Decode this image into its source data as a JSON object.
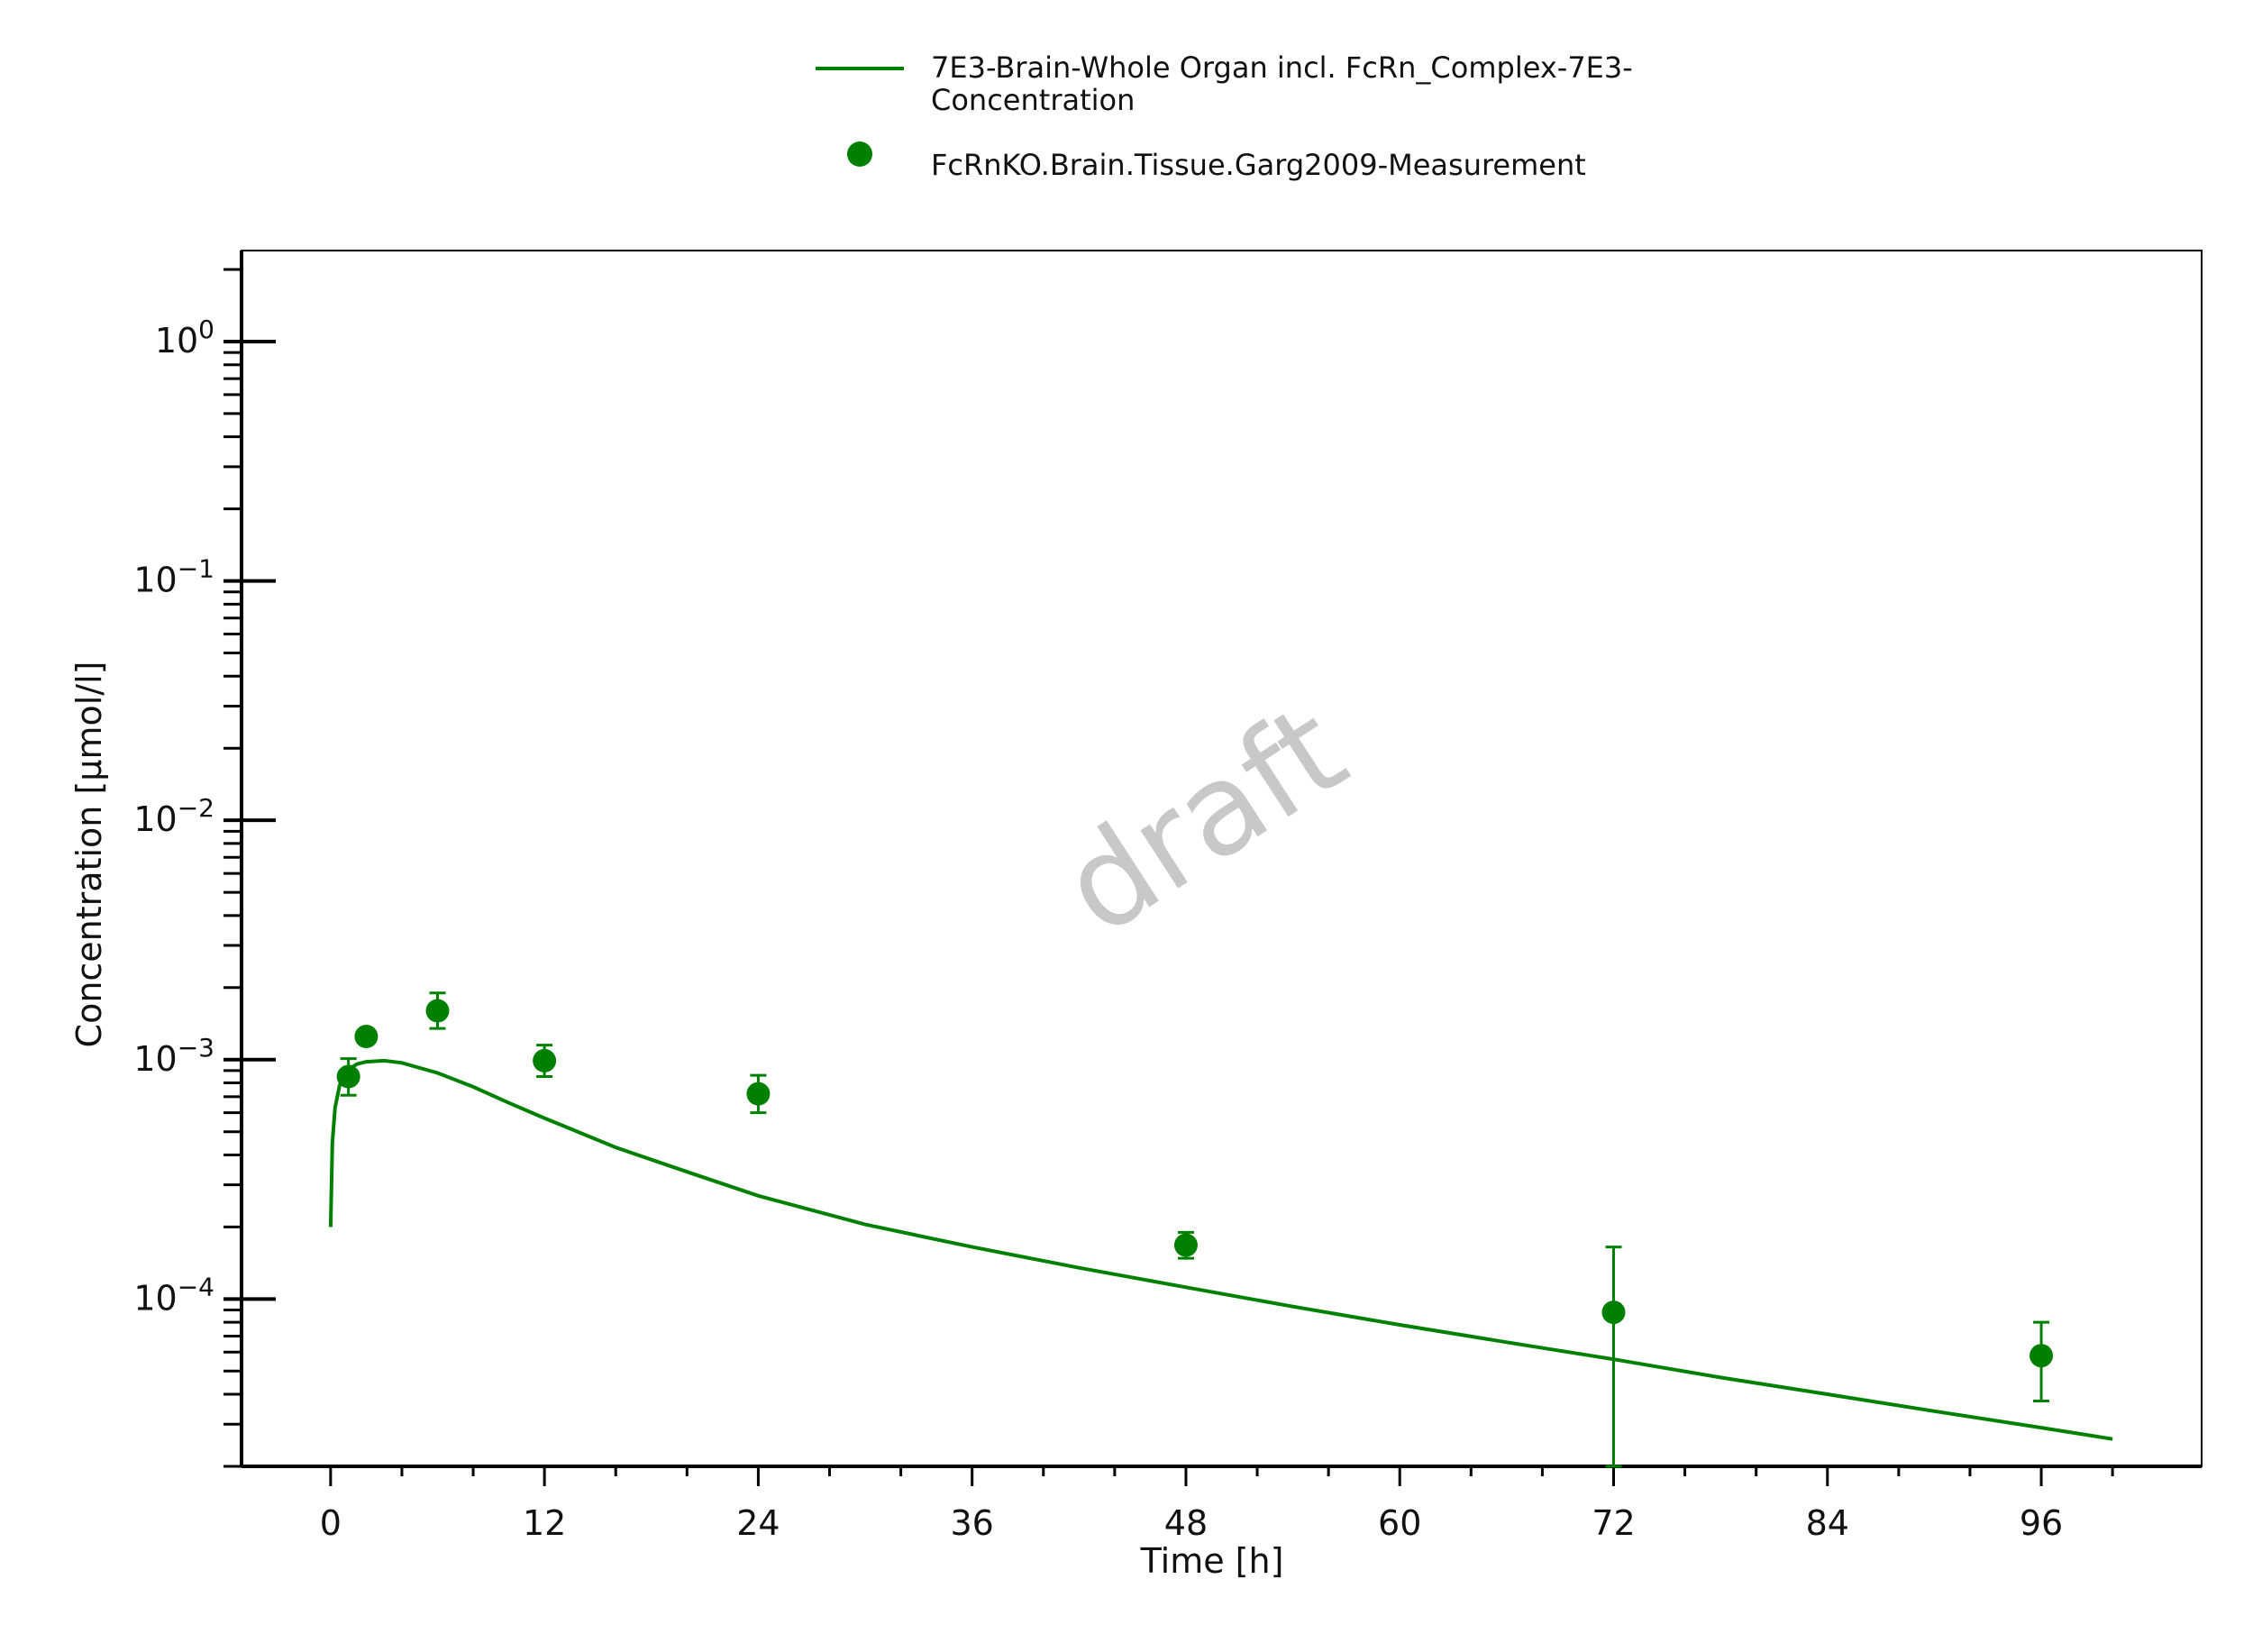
{
  "chart_data": {
    "type": "line",
    "xlabel": "Time [h]",
    "ylabel": "Concentration [µmol/l]",
    "xlim": [
      -5,
      105
    ],
    "ylim": [
      2e-05,
      2.4
    ],
    "yscale": "log",
    "xticks": [
      0,
      12,
      24,
      36,
      48,
      60,
      72,
      84,
      96
    ],
    "yticks": [
      {
        "value": 1,
        "base": "10",
        "exp": "0"
      },
      {
        "value": 0.1,
        "base": "10",
        "exp": "−1"
      },
      {
        "value": 0.01,
        "base": "10",
        "exp": "−2"
      },
      {
        "value": 0.001,
        "base": "10",
        "exp": "−3"
      },
      {
        "value": 0.0001,
        "base": "10",
        "exp": "−4"
      }
    ],
    "grid": false,
    "legend_position": "top",
    "watermark": "draft",
    "series": [
      {
        "name": "7E3-Brain-Whole Organ incl. FcRn_Complex-7E3-Concentration",
        "legend_lines": [
          "7E3-Brain-Whole Organ incl. FcRn_Complex-7E3-",
          "Concentration"
        ],
        "kind": "line",
        "color": "#008000",
        "x": [
          0,
          0.1,
          0.25,
          0.5,
          1,
          1.5,
          2,
          3,
          4,
          6,
          8,
          10,
          12,
          16,
          20,
          24,
          30,
          36,
          42,
          48,
          54,
          60,
          66,
          72,
          78,
          84,
          90,
          96,
          100
        ],
        "y": [
          0.0002,
          0.00045,
          0.00063,
          0.00078,
          0.00091,
          0.00096,
          0.00098,
          0.00099,
          0.00097,
          0.00088,
          0.00077,
          0.00066,
          0.00057,
          0.00043,
          0.00034,
          0.00027,
          0.000205,
          0.000165,
          0.000135,
          0.000112,
          9.3e-05,
          7.8e-05,
          6.6e-05,
          5.6e-05,
          4.7e-05,
          4e-05,
          3.4e-05,
          2.9e-05,
          2.6e-05
        ]
      },
      {
        "name": "FcRnKO.Brain.Tissue.Garg2009-Measurement",
        "kind": "scatter",
        "color": "#008000",
        "points": [
          {
            "x": 1,
            "y": 0.00085,
            "ylow": 0.00071,
            "yhigh": 0.00101
          },
          {
            "x": 2,
            "y": 0.00125,
            "ylow": 0.00118,
            "yhigh": 0.00133
          },
          {
            "x": 6,
            "y": 0.0016,
            "ylow": 0.00135,
            "yhigh": 0.0019
          },
          {
            "x": 12,
            "y": 0.00099,
            "ylow": 0.00085,
            "yhigh": 0.00115
          },
          {
            "x": 24,
            "y": 0.00072,
            "ylow": 0.0006,
            "yhigh": 0.00086
          },
          {
            "x": 48,
            "y": 0.000168,
            "ylow": 0.000148,
            "yhigh": 0.00019
          },
          {
            "x": 72,
            "y": 8.8e-05,
            "ylow": 2e-05,
            "yhigh": 0.000165
          },
          {
            "x": 96,
            "y": 5.8e-05,
            "ylow": 3.75e-05,
            "yhigh": 8e-05
          }
        ]
      }
    ]
  }
}
